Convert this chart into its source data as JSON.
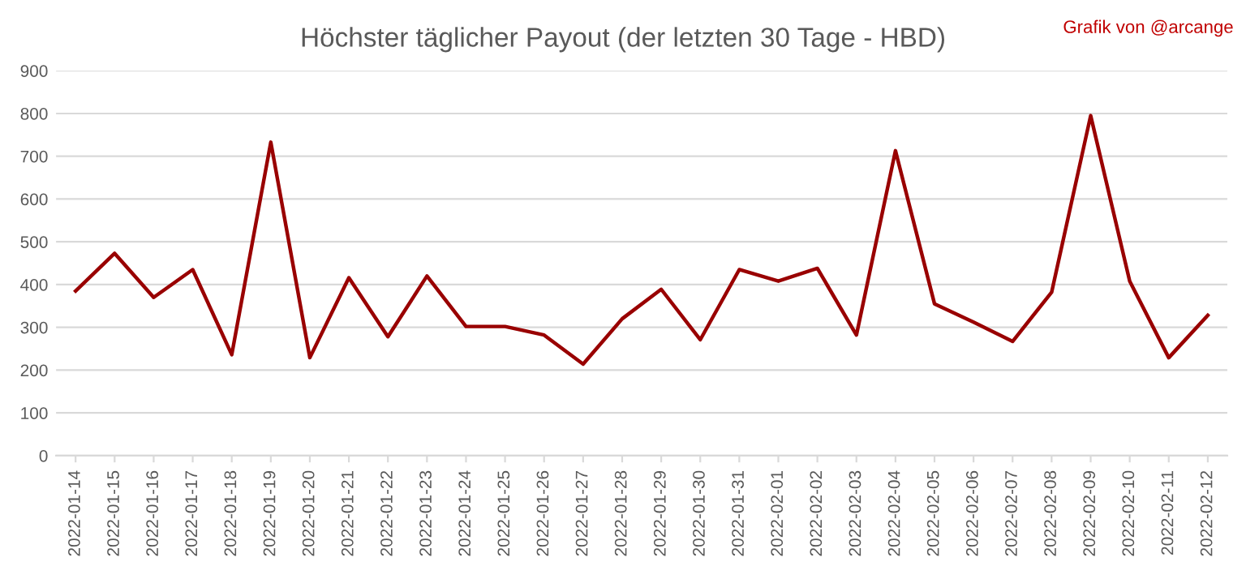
{
  "chart_data": {
    "type": "line",
    "title": "Höchster täglicher Payout (der letzten 30 Tage - HBD)",
    "annotations": [
      "Grafik von @arcange"
    ],
    "categories": [
      "2022-01-14",
      "2022-01-15",
      "2022-01-16",
      "2022-01-17",
      "2022-01-18",
      "2022-01-19",
      "2022-01-20",
      "2022-01-21",
      "2022-01-22",
      "2022-01-23",
      "2022-01-24",
      "2022-01-25",
      "2022-01-26",
      "2022-01-27",
      "2022-01-28",
      "2022-01-29",
      "2022-01-30",
      "2022-01-31",
      "2022-02-01",
      "2022-02-02",
      "2022-02-03",
      "2022-02-04",
      "2022-02-05",
      "2022-02-06",
      "2022-02-07",
      "2022-02-08",
      "2022-02-09",
      "2022-02-10",
      "2022-02-11",
      "2022-02-12"
    ],
    "series": [
      {
        "color": "#990000",
        "values": [
          385,
          473,
          370,
          435,
          236,
          733,
          229,
          416,
          278,
          420,
          302,
          302,
          282,
          214,
          320,
          389,
          271,
          435,
          408,
          438,
          282,
          713,
          355,
          312,
          267,
          382,
          795,
          408,
          229,
          328
        ]
      }
    ],
    "ylim": [
      0,
      900
    ],
    "yticks": [
      0,
      100,
      200,
      300,
      400,
      500,
      600,
      700,
      800,
      900
    ],
    "grid": "y",
    "legend": false,
    "marker": "none",
    "line_style": "solid"
  }
}
